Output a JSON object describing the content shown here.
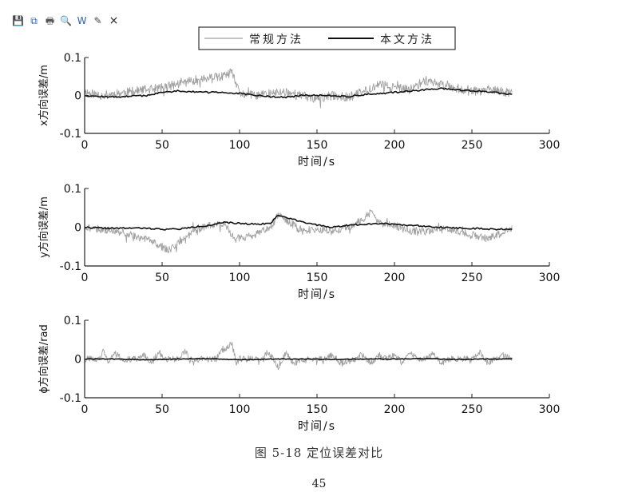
{
  "toolbar": {
    "buttons": [
      {
        "icon": "save-icon",
        "glyph": "💾",
        "color": "#2a5fb0"
      },
      {
        "icon": "copy-icon",
        "glyph": "⧉",
        "color": "#2a5fb0"
      },
      {
        "icon": "print-icon",
        "glyph": "🖶",
        "color": "#555555"
      },
      {
        "icon": "preview-icon",
        "glyph": "🔍",
        "color": "#555555"
      },
      {
        "icon": "word-icon",
        "glyph": "W",
        "color": "#2a5fb0"
      },
      {
        "icon": "edit-icon",
        "glyph": "✎",
        "color": "#444444"
      }
    ],
    "close_label": "×"
  },
  "chart_data": {
    "type": "line",
    "legend": {
      "position": "top-center",
      "entries": [
        {
          "name": "常规方法",
          "color": "#a0a0a0"
        },
        {
          "name": "本文方法",
          "color": "#111111"
        }
      ]
    },
    "panels": [
      {
        "ylabel": "x方向误差/m",
        "xlabel": "时间/s",
        "xlim": [
          0,
          300
        ],
        "ylim": [
          -0.1,
          0.1
        ],
        "xticks": [
          0,
          50,
          100,
          150,
          200,
          250,
          300
        ],
        "yticks": [
          -0.1,
          0,
          0.1
        ],
        "series": [
          {
            "name": "常规方法",
            "color": "#a0a0a0",
            "noise": 0.012,
            "seed": 11,
            "x": [
              0,
              10,
              20,
              30,
              40,
              50,
              60,
              70,
              80,
              90,
              95,
              100,
              110,
              120,
              130,
              140,
              150,
              160,
              170,
              180,
              190,
              200,
              210,
              220,
              230,
              240,
              250,
              260,
              270,
              276
            ],
            "y": [
              0.01,
              0.0,
              0.005,
              0.01,
              0.015,
              0.02,
              0.03,
              0.04,
              0.045,
              0.05,
              0.06,
              0.005,
              0.0,
              0.005,
              0.01,
              0.0,
              -0.01,
              0.0,
              -0.005,
              0.01,
              0.03,
              0.02,
              0.015,
              0.04,
              0.03,
              0.02,
              0.01,
              0.015,
              0.01,
              0.005
            ]
          },
          {
            "name": "本文方法",
            "color": "#111111",
            "noise": 0.002,
            "seed": 12,
            "x": [
              0,
              10,
              20,
              30,
              40,
              50,
              60,
              70,
              80,
              90,
              100,
              110,
              120,
              130,
              140,
              150,
              160,
              170,
              180,
              190,
              200,
              210,
              220,
              230,
              240,
              250,
              260,
              270,
              276
            ],
            "y": [
              0.0,
              -0.003,
              -0.004,
              -0.002,
              0.0,
              0.008,
              0.012,
              0.01,
              0.008,
              0.008,
              0.005,
              0.0,
              -0.003,
              -0.005,
              0.0,
              0.0,
              0.0,
              -0.003,
              0.002,
              0.005,
              0.008,
              0.012,
              0.015,
              0.018,
              0.015,
              0.012,
              0.01,
              0.005,
              0.002
            ]
          }
        ]
      },
      {
        "ylabel": "y方向误差/m",
        "xlabel": "时间/s",
        "xlim": [
          0,
          300
        ],
        "ylim": [
          -0.1,
          0.1
        ],
        "xticks": [
          0,
          50,
          100,
          150,
          200,
          250,
          300
        ],
        "yticks": [
          -0.1,
          0,
          0.1
        ],
        "series": [
          {
            "name": "常规方法",
            "color": "#a0a0a0",
            "noise": 0.01,
            "seed": 21,
            "x": [
              0,
              10,
              20,
              30,
              40,
              50,
              55,
              60,
              70,
              80,
              90,
              95,
              100,
              110,
              120,
              125,
              130,
              140,
              150,
              160,
              170,
              180,
              185,
              190,
              200,
              210,
              220,
              230,
              240,
              250,
              260,
              270,
              276
            ],
            "y": [
              0.0,
              -0.005,
              -0.01,
              -0.02,
              -0.03,
              -0.05,
              -0.06,
              -0.045,
              -0.01,
              0.005,
              0.01,
              -0.02,
              -0.03,
              -0.02,
              0.0,
              0.03,
              0.02,
              -0.01,
              -0.005,
              -0.01,
              0.0,
              0.02,
              0.04,
              0.01,
              0.005,
              -0.01,
              -0.01,
              -0.005,
              -0.01,
              -0.02,
              -0.03,
              -0.015,
              -0.005
            ]
          },
          {
            "name": "本文方法",
            "color": "#111111",
            "noise": 0.002,
            "seed": 22,
            "x": [
              0,
              10,
              20,
              30,
              40,
              50,
              60,
              70,
              80,
              90,
              100,
              110,
              120,
              125,
              130,
              140,
              150,
              160,
              170,
              180,
              190,
              200,
              210,
              220,
              230,
              240,
              250,
              260,
              270,
              276
            ],
            "y": [
              0.0,
              -0.002,
              -0.003,
              -0.002,
              -0.003,
              -0.005,
              -0.005,
              0.0,
              0.005,
              0.012,
              0.01,
              0.008,
              0.01,
              0.032,
              0.025,
              0.015,
              0.005,
              0.0,
              0.005,
              0.008,
              0.01,
              0.008,
              0.005,
              0.003,
              0.0,
              -0.002,
              -0.003,
              -0.005,
              -0.005,
              -0.005
            ]
          }
        ]
      },
      {
        "ylabel": "ϕ方向误差/rad",
        "xlabel": "时间/s",
        "xlim": [
          0,
          300
        ],
        "ylim": [
          -0.1,
          0.1
        ],
        "xticks": [
          0,
          50,
          100,
          150,
          200,
          250,
          300
        ],
        "yticks": [
          -0.1,
          0,
          0.1
        ],
        "series": [
          {
            "name": "常规方法",
            "color": "#a0a0a0",
            "noise": 0.008,
            "seed": 31,
            "x": [
              0,
              10,
              12,
              15,
              20,
              25,
              28,
              35,
              38,
              42,
              48,
              52,
              60,
              65,
              70,
              75,
              85,
              88,
              95,
              98,
              100,
              105,
              115,
              118,
              125,
              130,
              135,
              145,
              155,
              160,
              165,
              175,
              178,
              185,
              190,
              195,
              200,
              205,
              210,
              215,
              220,
              225,
              230,
              235,
              240,
              250,
              255,
              260,
              265,
              270,
              276
            ],
            "y": [
              0.0,
              0.0,
              0.02,
              -0.01,
              0.02,
              -0.005,
              0.0,
              0.0,
              0.015,
              -0.01,
              0.015,
              0.0,
              0.0,
              0.02,
              -0.01,
              0.0,
              0.0,
              0.02,
              0.04,
              -0.01,
              0.0,
              0.0,
              0.0,
              0.02,
              -0.02,
              0.015,
              -0.01,
              0.0,
              0.0,
              0.01,
              -0.01,
              0.0,
              0.015,
              -0.01,
              0.01,
              0.0,
              0.01,
              -0.01,
              0.015,
              0.0,
              0.0,
              0.015,
              -0.01,
              0.0,
              0.0,
              0.0,
              0.02,
              -0.01,
              0.0,
              0.01,
              0.0
            ]
          },
          {
            "name": "本文方法",
            "color": "#111111",
            "noise": 0.001,
            "seed": 32,
            "x": [
              0,
              20,
              40,
              60,
              80,
              100,
              120,
              140,
              160,
              180,
              200,
              220,
              240,
              260,
              276
            ],
            "y": [
              0.0,
              0.0,
              -0.002,
              0.0,
              0.001,
              -0.002,
              0.0,
              0.0,
              -0.001,
              0.0,
              0.0,
              0.001,
              -0.001,
              0.0,
              0.0
            ]
          }
        ]
      }
    ]
  },
  "caption": "图 5-18 定位误差对比",
  "page_number": "45"
}
